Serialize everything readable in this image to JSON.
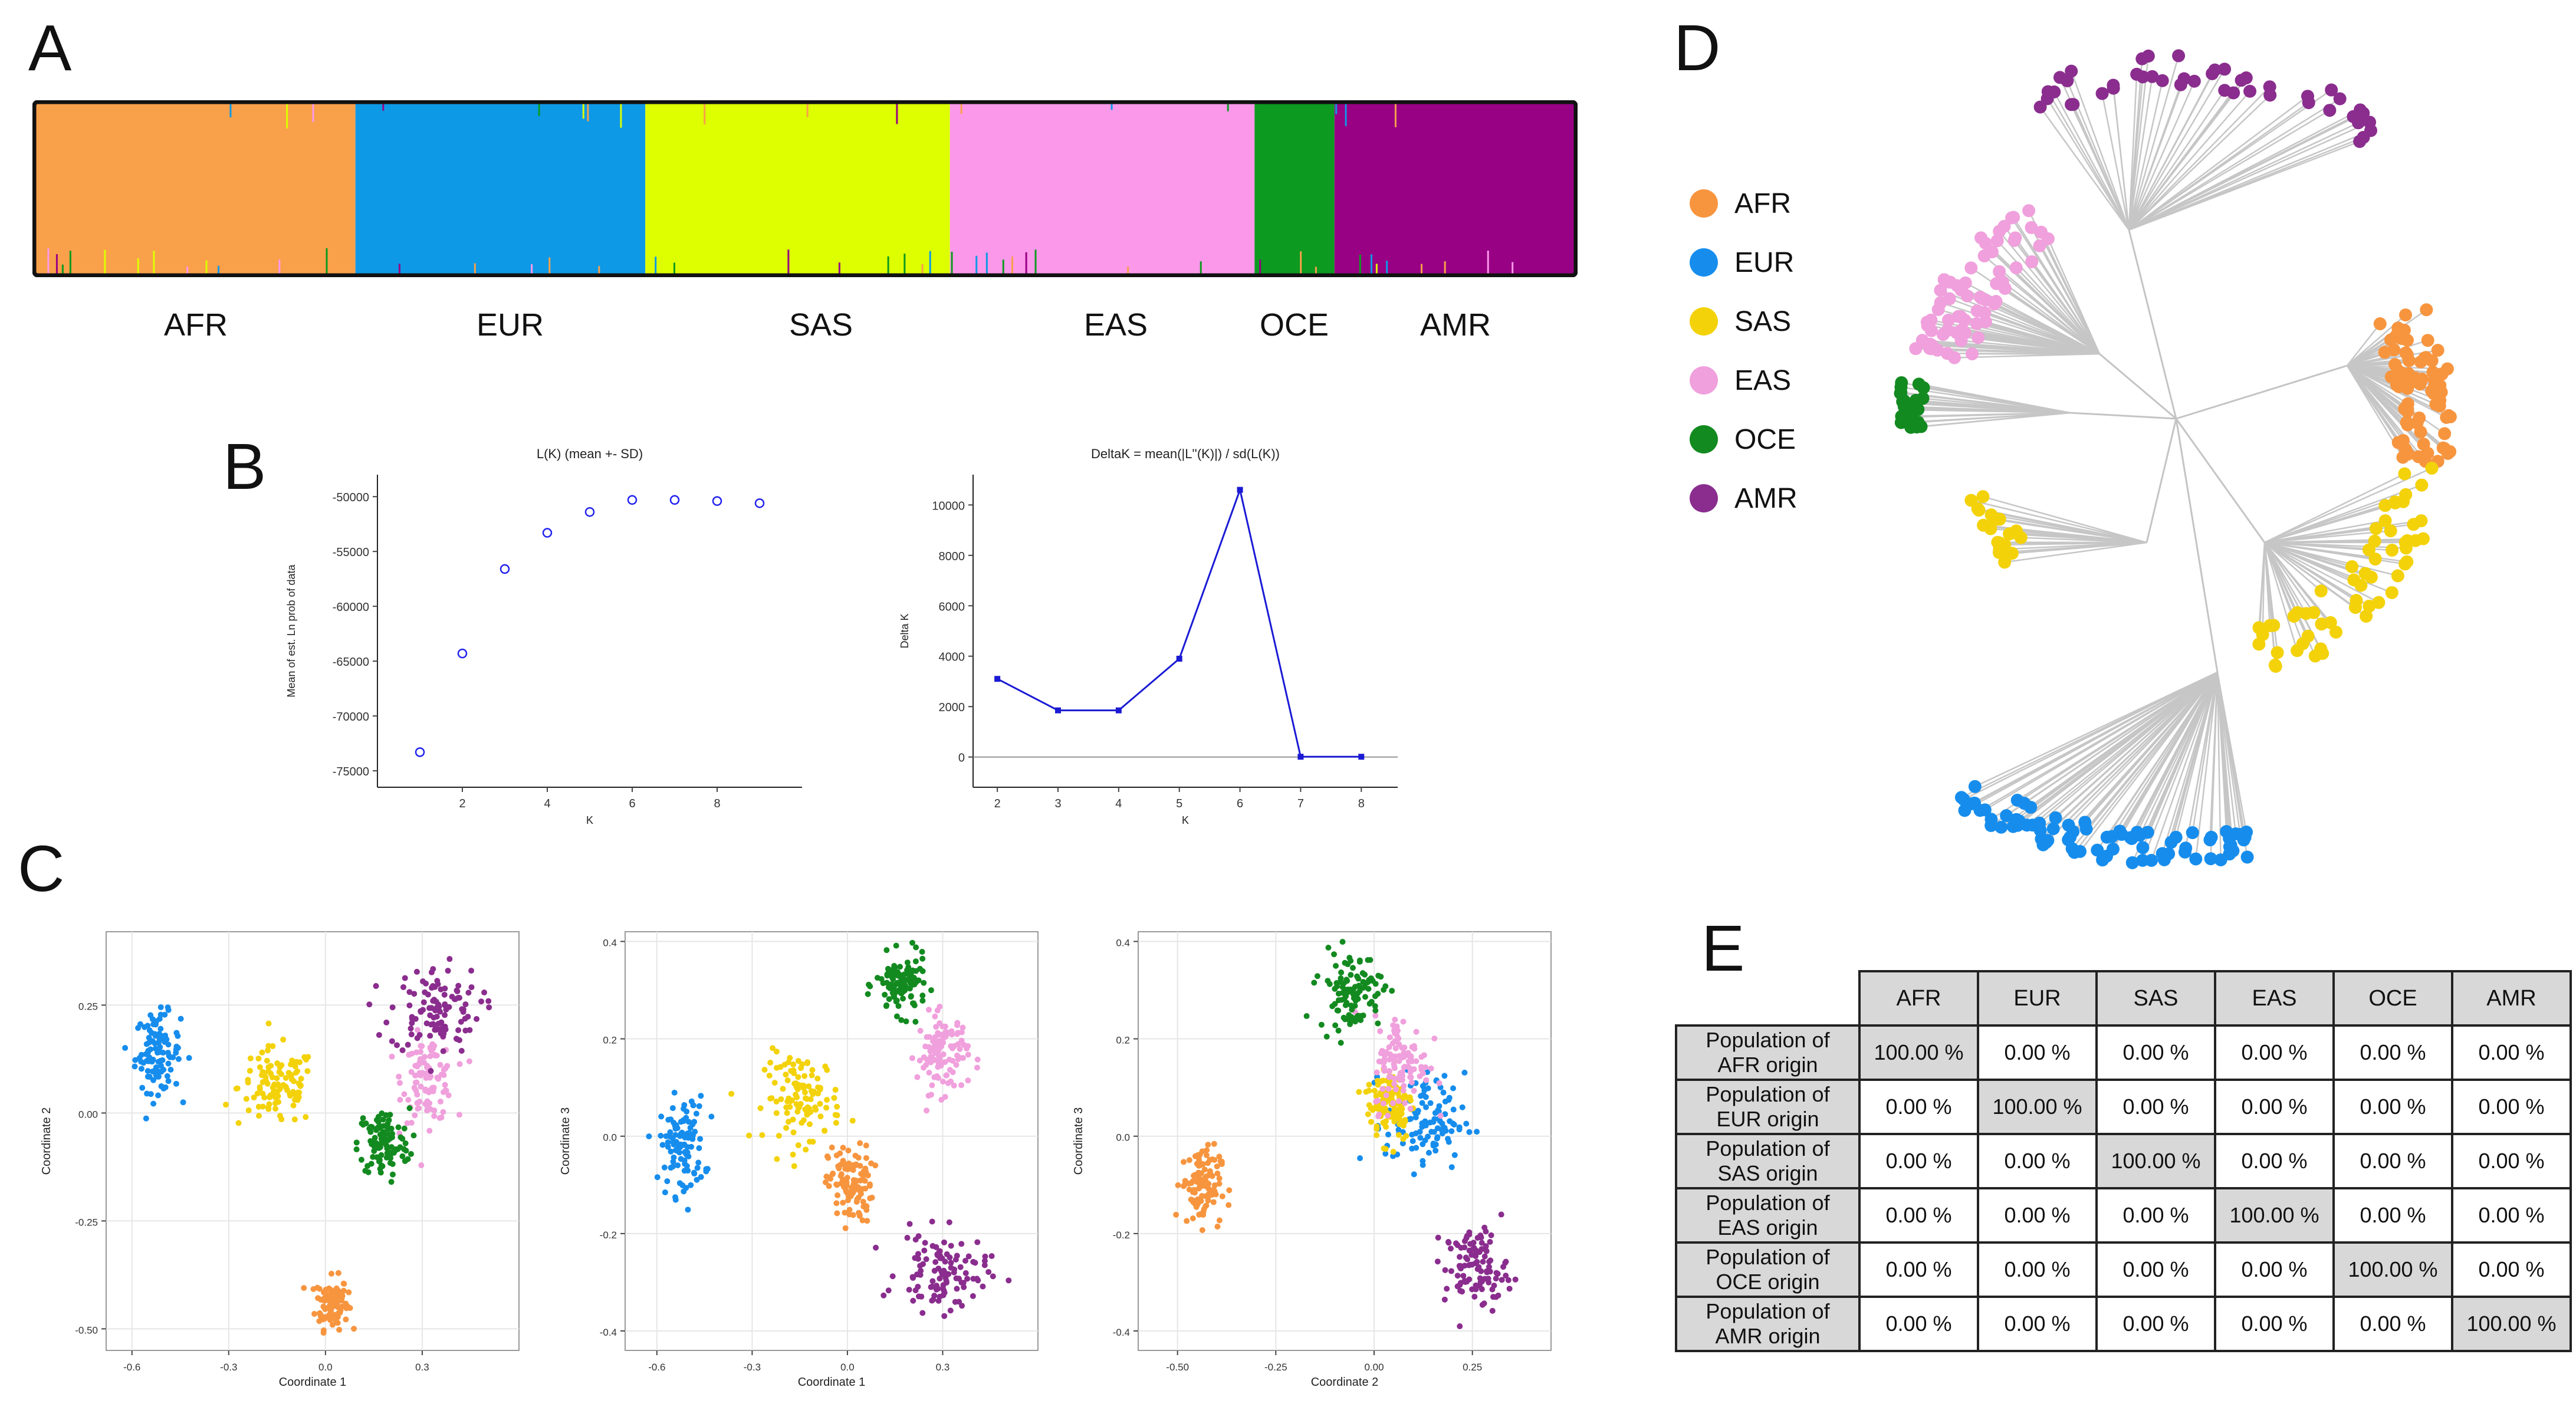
{
  "panels": {
    "a": "A",
    "b": "B",
    "c": "C",
    "d": "D",
    "e": "E"
  },
  "structure": {
    "populations": [
      "AFR",
      "EUR",
      "SAS",
      "EAS",
      "OCE",
      "AMR"
    ],
    "colors": {
      "AFR": "#f9a04a",
      "EUR": "#0d99e6",
      "SAS": "#ddff00",
      "EAS": "#fb98ea",
      "OCE": "#0c9a20",
      "AMR": "#980184"
    }
  },
  "legend": {
    "items": [
      {
        "label": "AFR",
        "color": "#f7953f"
      },
      {
        "label": "EUR",
        "color": "#168ded"
      },
      {
        "label": "SAS",
        "color": "#f3d20a"
      },
      {
        "label": "EAS",
        "color": "#f0a0dc"
      },
      {
        "label": "OCE",
        "color": "#138a20"
      },
      {
        "label": "AMR",
        "color": "#8a2d8e"
      }
    ]
  },
  "chart_data": [
    {
      "type": "scatter",
      "title": "L(K) (mean +- SD)",
      "xlabel": "K",
      "ylabel": "Mean of est. Ln prob of data",
      "x": [
        1,
        2,
        3,
        4,
        5,
        6,
        7,
        8,
        9
      ],
      "y": [
        -73300,
        -64300,
        -56600,
        -53300,
        -51400,
        -50300,
        -50300,
        -50400,
        -50600
      ],
      "xlim": [
        0,
        10
      ],
      "ylim": [
        -76500,
        -48000
      ],
      "xticks": [
        "2",
        "4",
        "6",
        "8"
      ],
      "yticks": [
        "-50000",
        "-55000",
        "-60000",
        "-65000",
        "-70000",
        "-75000"
      ]
    },
    {
      "type": "line",
      "title": "DeltaK = mean(|L''(K)|) / sd(L(K))",
      "xlabel": "K",
      "ylabel": "Delta K",
      "x": [
        2,
        3,
        4,
        5,
        6,
        7,
        8
      ],
      "y": [
        3100,
        1850,
        1850,
        3900,
        10600,
        10,
        10
      ],
      "xlim": [
        1.6,
        8.6
      ],
      "ylim": [
        -1200,
        11200
      ],
      "xticks": [
        "2",
        "3",
        "4",
        "5",
        "6",
        "7",
        "8"
      ],
      "yticks": [
        "0",
        "2000",
        "4000",
        "6000",
        "8000",
        "10000"
      ]
    },
    {
      "type": "scatter",
      "title": "",
      "xlabel": "Coordinate 1",
      "ylabel": "Coordinate 2",
      "xlim": [
        -0.68,
        0.6
      ],
      "ylim": [
        -0.55,
        0.42
      ],
      "xticks": [
        "-0.6",
        "-0.3",
        "0.0",
        "0.3"
      ],
      "yticks": [
        "0.25",
        "0.00",
        "-0.25",
        "-0.50"
      ],
      "series": [
        {
          "name": "AFR",
          "color": "#f7953f",
          "center": [
            0.02,
            -0.44
          ],
          "spread": [
            0.025,
            0.03
          ]
        },
        {
          "name": "EUR",
          "color": "#168ded",
          "center": [
            -0.52,
            0.14
          ],
          "spread": [
            0.035,
            0.045
          ]
        },
        {
          "name": "SAS",
          "color": "#f3d20a",
          "center": [
            -0.15,
            0.06
          ],
          "spread": [
            0.06,
            0.045
          ]
        },
        {
          "name": "EAS",
          "color": "#f0a0dc",
          "center": [
            0.32,
            0.08
          ],
          "spread": [
            0.04,
            0.05
          ]
        },
        {
          "name": "OCE",
          "color": "#138a20",
          "center": [
            0.18,
            -0.07
          ],
          "spread": [
            0.04,
            0.04
          ]
        },
        {
          "name": "AMR",
          "color": "#8a2d8e",
          "center": [
            0.34,
            0.24
          ],
          "spread": [
            0.07,
            0.05
          ]
        }
      ]
    },
    {
      "type": "scatter",
      "title": "",
      "xlabel": "Coordinate 1",
      "ylabel": "Coordinate 3",
      "xlim": [
        -0.7,
        0.6
      ],
      "ylim": [
        -0.44,
        0.42
      ],
      "xticks": [
        "-0.6",
        "-0.3",
        "0.0",
        "0.3"
      ],
      "yticks": [
        "0.4",
        "0.2",
        "0.0",
        "-0.2",
        "-0.4"
      ],
      "series": [
        {
          "name": "AFR",
          "color": "#f7953f",
          "center": [
            0.01,
            -0.1
          ],
          "spread": [
            0.035,
            0.04
          ]
        },
        {
          "name": "EUR",
          "color": "#168ded",
          "center": [
            -0.52,
            -0.02
          ],
          "spread": [
            0.035,
            0.05
          ]
        },
        {
          "name": "SAS",
          "color": "#f3d20a",
          "center": [
            -0.14,
            0.08
          ],
          "spread": [
            0.06,
            0.045
          ]
        },
        {
          "name": "EAS",
          "color": "#f0a0dc",
          "center": [
            0.3,
            0.17
          ],
          "spread": [
            0.04,
            0.04
          ]
        },
        {
          "name": "OCE",
          "color": "#138a20",
          "center": [
            0.17,
            0.31
          ],
          "spread": [
            0.04,
            0.03
          ]
        },
        {
          "name": "AMR",
          "color": "#8a2d8e",
          "center": [
            0.3,
            -0.28
          ],
          "spread": [
            0.07,
            0.04
          ]
        }
      ]
    },
    {
      "type": "scatter",
      "title": "",
      "xlabel": "Coordinate 2",
      "ylabel": "Coordinate 3",
      "xlim": [
        -0.6,
        0.45
      ],
      "ylim": [
        -0.44,
        0.42
      ],
      "xticks": [
        "-0.50",
        "-0.25",
        "0.00",
        "0.25"
      ],
      "yticks": [
        "0.4",
        "0.2",
        "0.0",
        "-0.2",
        "-0.4"
      ],
      "series": [
        {
          "name": "AFR",
          "color": "#f7953f",
          "center": [
            -0.44,
            -0.1
          ],
          "spread": [
            0.025,
            0.04
          ]
        },
        {
          "name": "EUR",
          "color": "#168ded",
          "center": [
            0.13,
            0.03
          ],
          "spread": [
            0.05,
            0.05
          ]
        },
        {
          "name": "SAS",
          "color": "#f3d20a",
          "center": [
            0.04,
            0.07
          ],
          "spread": [
            0.03,
            0.04
          ]
        },
        {
          "name": "EAS",
          "color": "#f0a0dc",
          "center": [
            0.07,
            0.15
          ],
          "spread": [
            0.035,
            0.05
          ]
        },
        {
          "name": "OCE",
          "color": "#138a20",
          "center": [
            -0.06,
            0.3
          ],
          "spread": [
            0.04,
            0.04
          ]
        },
        {
          "name": "AMR",
          "color": "#8a2d8e",
          "center": [
            0.26,
            -0.27
          ],
          "spread": [
            0.04,
            0.04
          ]
        }
      ]
    }
  ],
  "table": {
    "columns": [
      "AFR",
      "EUR",
      "SAS",
      "EAS",
      "OCE",
      "AMR"
    ],
    "rows": [
      {
        "label_line1": "Population of",
        "label_line2": "AFR origin",
        "values": [
          "100.00 %",
          "0.00 %",
          "0.00 %",
          "0.00 %",
          "0.00 %",
          "0.00 %"
        ]
      },
      {
        "label_line1": "Population of",
        "label_line2": "EUR origin",
        "values": [
          "0.00 %",
          "100.00 %",
          "0.00 %",
          "0.00 %",
          "0.00 %",
          "0.00 %"
        ]
      },
      {
        "label_line1": "Population of",
        "label_line2": "SAS origin",
        "values": [
          "0.00 %",
          "0.00 %",
          "100.00 %",
          "0.00 %",
          "0.00 %",
          "0.00 %"
        ]
      },
      {
        "label_line1": "Population of",
        "label_line2": "EAS origin",
        "values": [
          "0.00 %",
          "0.00 %",
          "0.00 %",
          "100.00 %",
          "0.00 %",
          "0.00 %"
        ]
      },
      {
        "label_line1": "Population of",
        "label_line2": "OCE origin",
        "values": [
          "0.00 %",
          "0.00 %",
          "0.00 %",
          "0.00 %",
          "100.00 %",
          "0.00 %"
        ]
      },
      {
        "label_line1": "Population of",
        "label_line2": "AMR origin",
        "values": [
          "0.00 %",
          "0.00 %",
          "0.00 %",
          "0.00 %",
          "0.00 %",
          "100.00 %"
        ]
      }
    ]
  }
}
